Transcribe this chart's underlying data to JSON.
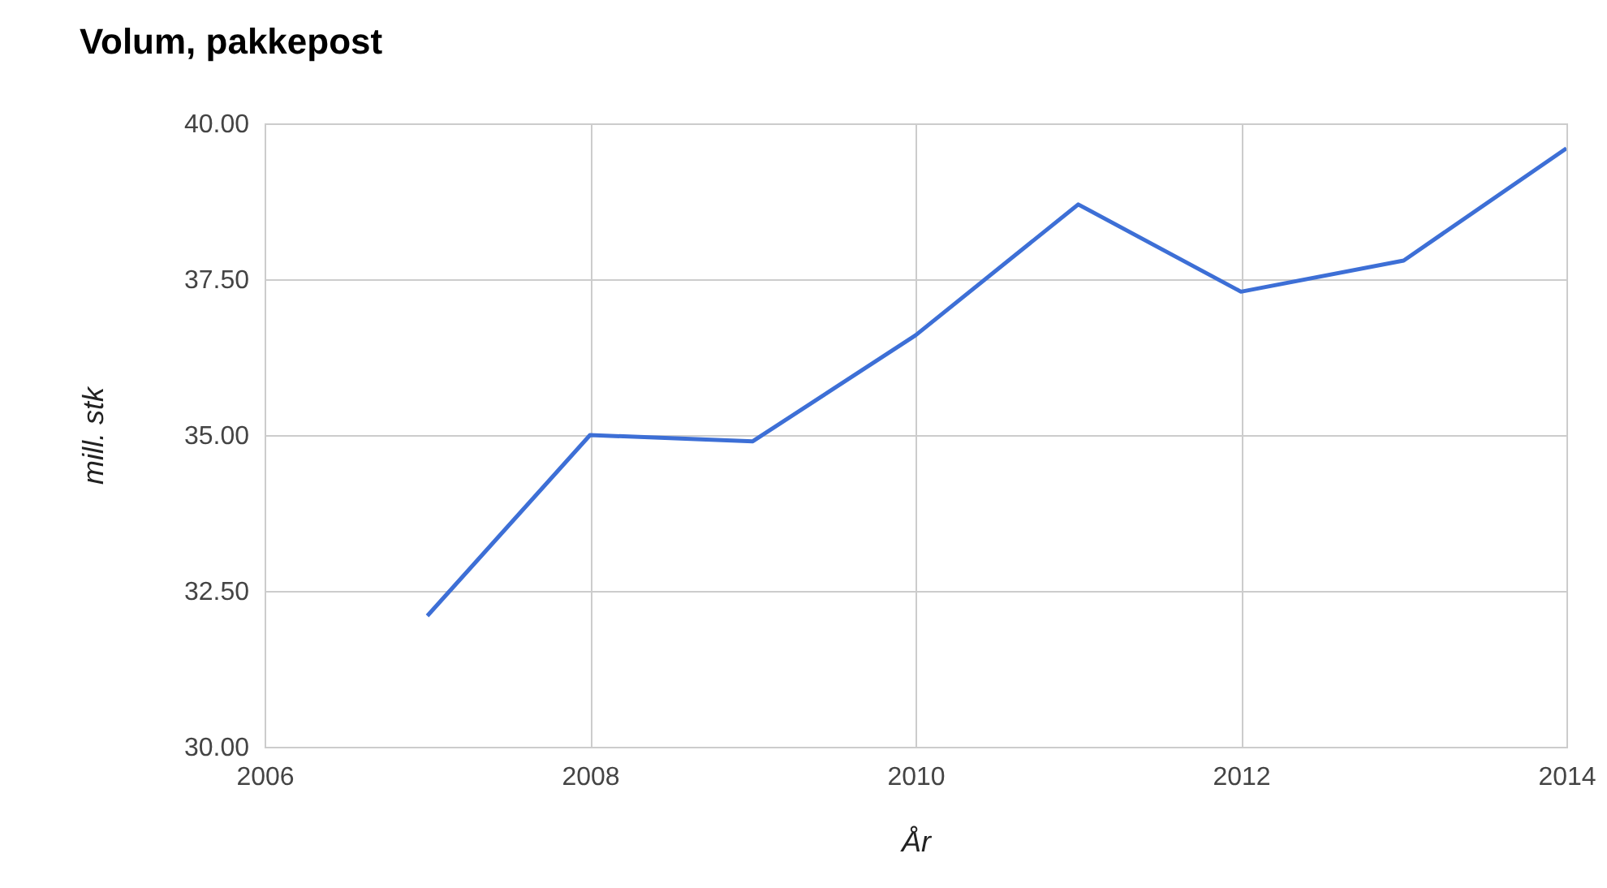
{
  "chart_data": {
    "type": "line",
    "title": "Volum, pakkepost",
    "xlabel": "År",
    "ylabel": "mill. stk",
    "x": [
      2007,
      2008,
      2009,
      2010,
      2011,
      2012,
      2013,
      2014
    ],
    "series": [
      {
        "color": "#3d6fd6",
        "values": [
          32.1,
          35.0,
          34.9,
          36.6,
          38.7,
          37.3,
          37.8,
          39.6
        ]
      }
    ],
    "xlim": [
      2006,
      2014
    ],
    "xticks": [
      2006,
      2008,
      2010,
      2012,
      2014
    ],
    "ylim": [
      30,
      40
    ],
    "yticks": [
      {
        "value": 30,
        "label": "30.00"
      },
      {
        "value": 32.5,
        "label": "32.50"
      },
      {
        "value": 35,
        "label": "35.00"
      },
      {
        "value": 37.5,
        "label": "37.50"
      },
      {
        "value": 40,
        "label": "40.00"
      }
    ],
    "grid": true
  }
}
